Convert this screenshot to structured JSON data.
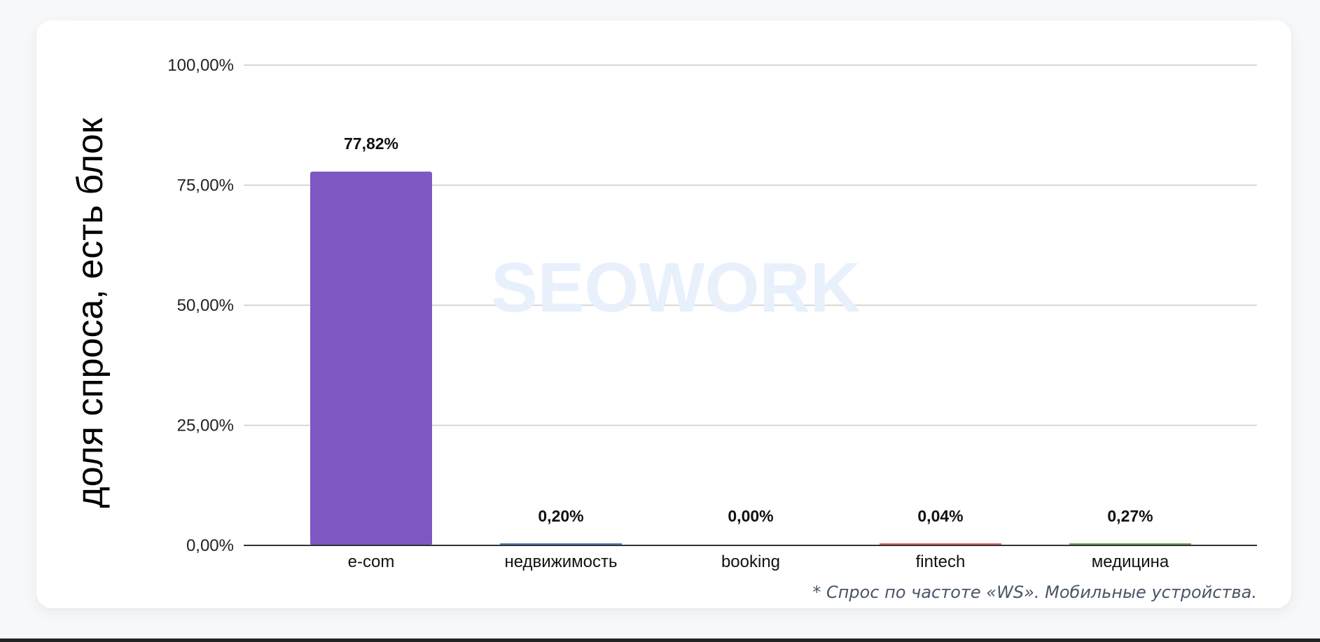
{
  "watermark": "SEOWORK",
  "footnote": "* Спрос по частоте «WS». Мобильные устройства.",
  "chart_data": {
    "type": "bar",
    "title": "",
    "xlabel": "",
    "ylabel": "доля спроса, есть блок",
    "ylim": [
      0,
      100
    ],
    "yticks": [
      0,
      25,
      50,
      75,
      100
    ],
    "ytick_labels": [
      "0,00%",
      "25,00%",
      "50,00%",
      "75,00%",
      "100,00%"
    ],
    "grid": true,
    "categories": [
      "e-com",
      "недвижимость",
      "booking",
      "fintech",
      "медицина"
    ],
    "values": [
      77.82,
      0.2,
      0.0,
      0.04,
      0.27
    ],
    "data_labels": [
      "77,82%",
      "0,20%",
      "0,00%",
      "0,04%",
      "0,27%"
    ],
    "colors": [
      "#7e57c2",
      "#4a7fc1",
      "#f2b73a",
      "#e06666",
      "#6aa84f"
    ]
  }
}
